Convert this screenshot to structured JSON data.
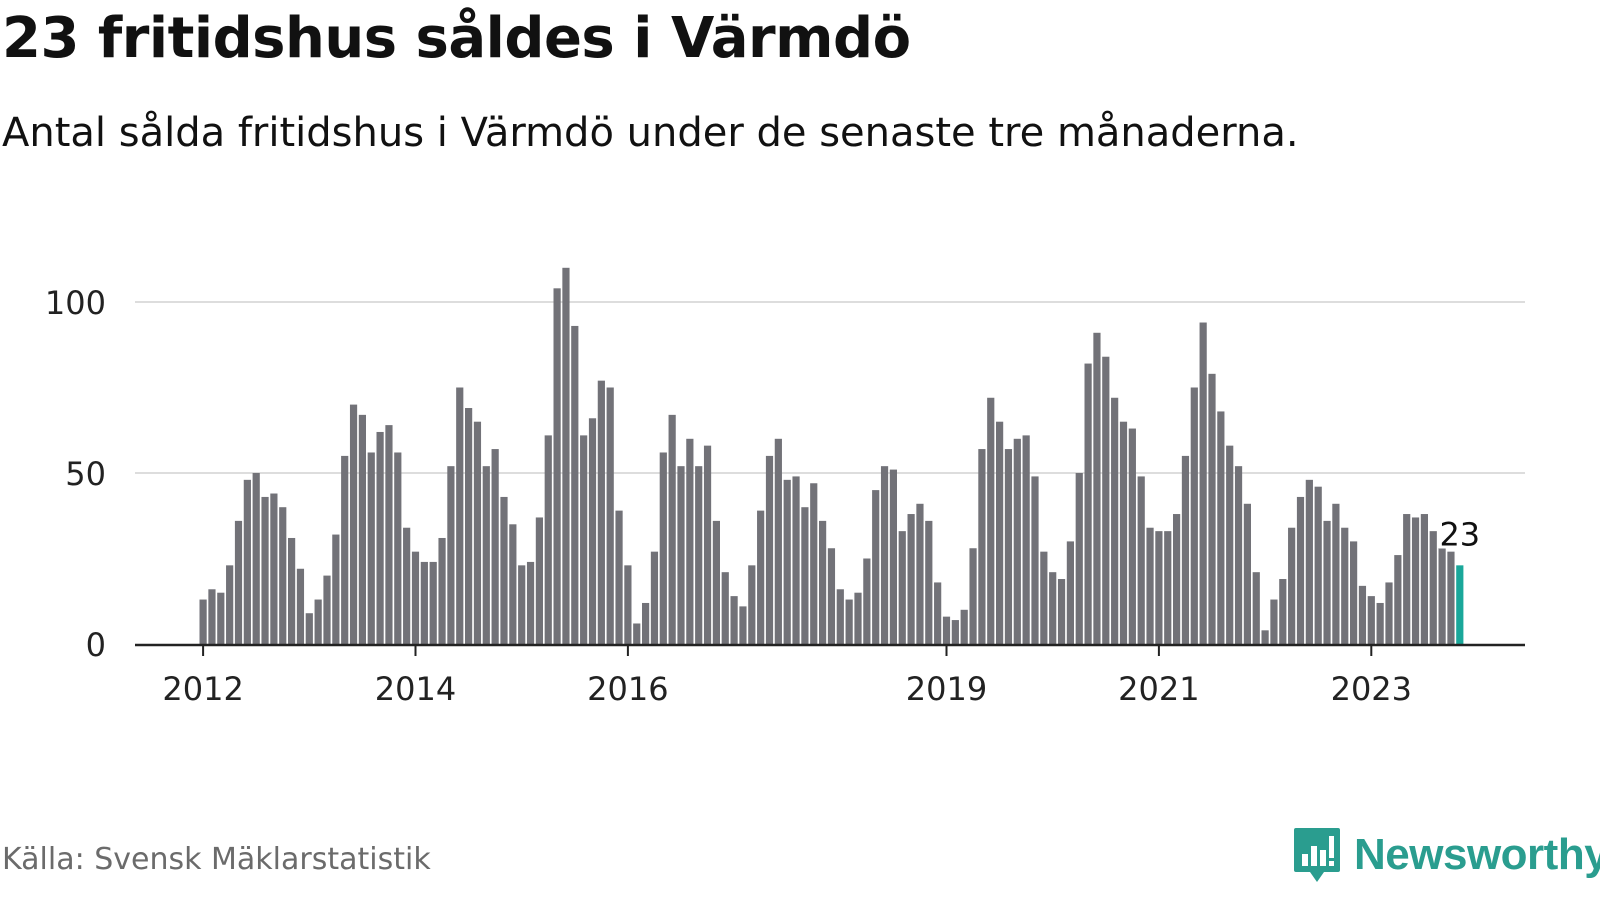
{
  "title": "23 fritidshus såldes i Värmdö",
  "subtitle": "Antal sålda fritidshus i Värmdö under de senaste tre månaderna.",
  "source": "Källa: Svensk Mäklarstatistik",
  "logo": {
    "text": "Newsworthy",
    "icon": "bar-chart-bubble-icon"
  },
  "colors": {
    "bar": "#727278",
    "highlight": "#1aa79a",
    "grid": "#dddddd",
    "axis": "#222222",
    "brand": "#2a9d8f"
  },
  "chart_data": {
    "type": "bar",
    "title": "23 fritidshus såldes i Värmdö",
    "xlabel": "",
    "ylabel": "",
    "ylim": [
      0,
      110
    ],
    "yticks": [
      0,
      50,
      100
    ],
    "ytick_labels": [
      "0",
      "50",
      "100"
    ],
    "xtick_labels": [
      "2012",
      "2014",
      "2016",
      "2019",
      "2021",
      "2023"
    ],
    "xtick_bar_index": [
      0,
      24,
      48,
      84,
      108,
      132
    ],
    "start_period": "2012-01",
    "frequency": "monthly, rolling three-month totals",
    "series": [
      {
        "name": "Antal sålda fritidshus",
        "values": [
          13,
          16,
          15,
          23,
          36,
          48,
          50,
          43,
          44,
          40,
          31,
          22,
          9,
          13,
          20,
          32,
          55,
          70,
          67,
          56,
          62,
          64,
          56,
          34,
          27,
          24,
          24,
          31,
          52,
          75,
          69,
          65,
          52,
          57,
          43,
          35,
          23,
          24,
          37,
          61,
          104,
          110,
          93,
          61,
          66,
          77,
          75,
          39,
          23,
          6,
          12,
          27,
          56,
          67,
          52,
          60,
          52,
          58,
          36,
          21,
          14,
          11,
          23,
          39,
          55,
          60,
          48,
          49,
          40,
          47,
          36,
          28,
          16,
          13,
          15,
          25,
          45,
          52,
          51,
          33,
          38,
          41,
          36,
          18,
          8,
          7,
          10,
          28,
          57,
          72,
          65,
          57,
          60,
          61,
          49,
          27,
          21,
          19,
          30,
          50,
          82,
          91,
          84,
          72,
          65,
          63,
          49,
          34,
          33,
          33,
          38,
          55,
          75,
          94,
          79,
          68,
          58,
          52,
          41,
          21,
          4,
          13,
          19,
          34,
          43,
          48,
          46,
          36,
          41,
          34,
          30,
          17,
          14,
          12,
          18,
          26,
          38,
          37,
          38,
          33,
          28,
          27,
          23
        ]
      }
    ],
    "highlight": {
      "index": 142,
      "value": 23,
      "label": "23"
    }
  }
}
